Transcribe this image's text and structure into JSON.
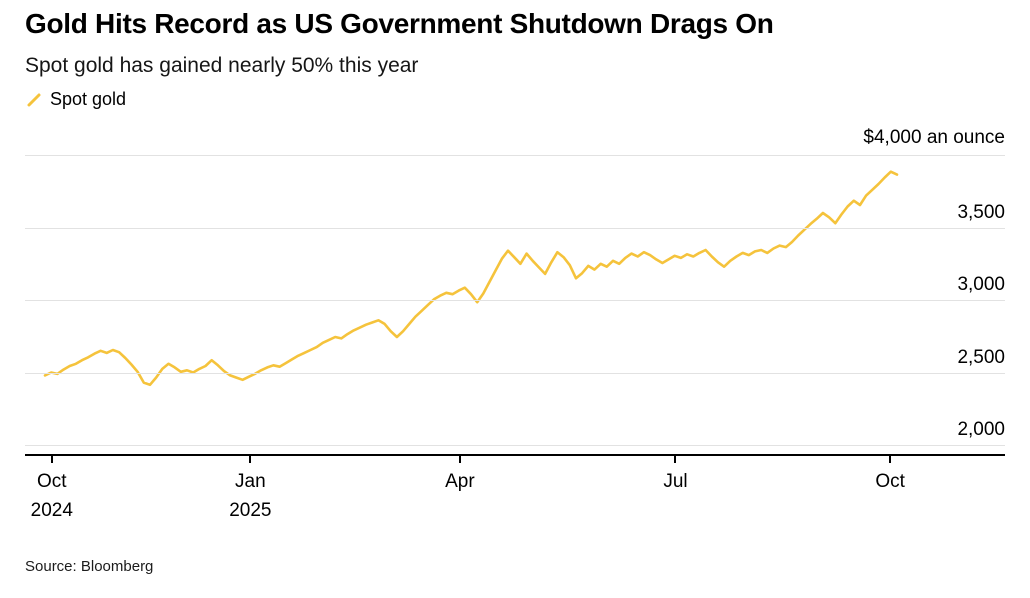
{
  "header": {
    "title": "Gold Hits Record as US Government Shutdown Drags On",
    "subtitle": "Spot gold has gained nearly 50% this year"
  },
  "legend": {
    "items": [
      {
        "label": "Spot gold",
        "color": "#F5C33C"
      }
    ]
  },
  "chart_data": {
    "type": "line",
    "title": "Gold Hits Record as US Government Shutdown Drags On",
    "subtitle": "Spot gold has gained nearly 50% this year",
    "legend_position": "top-left",
    "grid": true,
    "ylim": [
      1930,
      4200
    ],
    "y_axis": {
      "unit_label": "$4,000 an ounce",
      "ticks": [
        {
          "value": 4000,
          "label": ""
        },
        {
          "value": 3500,
          "label": "3,500"
        },
        {
          "value": 3000,
          "label": "3,000"
        },
        {
          "value": 2500,
          "label": "2,500"
        },
        {
          "value": 2000,
          "label": "2,000"
        }
      ]
    },
    "x_axis": {
      "start": "Oct 2024",
      "end": "Oct 2025",
      "spacing": "uniform",
      "ticks": [
        {
          "label": "Oct",
          "year": "2024",
          "t": 0.008
        },
        {
          "label": "Jan",
          "year": "2025",
          "t": 0.241
        },
        {
          "label": "Apr",
          "year": "",
          "t": 0.487
        },
        {
          "label": "Jul",
          "year": "",
          "t": 0.74
        },
        {
          "label": "Oct",
          "year": "",
          "t": 0.992
        }
      ]
    },
    "series": [
      {
        "name": "Spot gold",
        "color": "#F5C33C",
        "unit": "$ an ounce",
        "values": [
          2480,
          2500,
          2490,
          2520,
          2545,
          2560,
          2585,
          2605,
          2630,
          2650,
          2635,
          2655,
          2640,
          2600,
          2555,
          2505,
          2430,
          2415,
          2465,
          2525,
          2560,
          2535,
          2505,
          2515,
          2500,
          2525,
          2545,
          2585,
          2550,
          2510,
          2480,
          2465,
          2450,
          2470,
          2490,
          2515,
          2535,
          2550,
          2540,
          2565,
          2590,
          2615,
          2635,
          2655,
          2675,
          2705,
          2725,
          2745,
          2735,
          2765,
          2790,
          2810,
          2830,
          2845,
          2860,
          2835,
          2785,
          2745,
          2785,
          2835,
          2885,
          2925,
          2965,
          3005,
          3030,
          3050,
          3040,
          3065,
          3085,
          3040,
          2985,
          3045,
          3125,
          3205,
          3285,
          3340,
          3295,
          3250,
          3320,
          3270,
          3225,
          3180,
          3260,
          3330,
          3295,
          3240,
          3150,
          3185,
          3235,
          3210,
          3250,
          3230,
          3270,
          3250,
          3290,
          3320,
          3300,
          3330,
          3310,
          3280,
          3255,
          3280,
          3305,
          3290,
          3315,
          3300,
          3325,
          3345,
          3300,
          3260,
          3230,
          3270,
          3300,
          3325,
          3310,
          3335,
          3345,
          3325,
          3355,
          3375,
          3365,
          3400,
          3445,
          3485,
          3525,
          3560,
          3600,
          3570,
          3530,
          3590,
          3645,
          3685,
          3655,
          3720,
          3760,
          3800,
          3845,
          3885,
          3865
        ]
      }
    ]
  },
  "footer": {
    "source": "Source: Bloomberg"
  }
}
